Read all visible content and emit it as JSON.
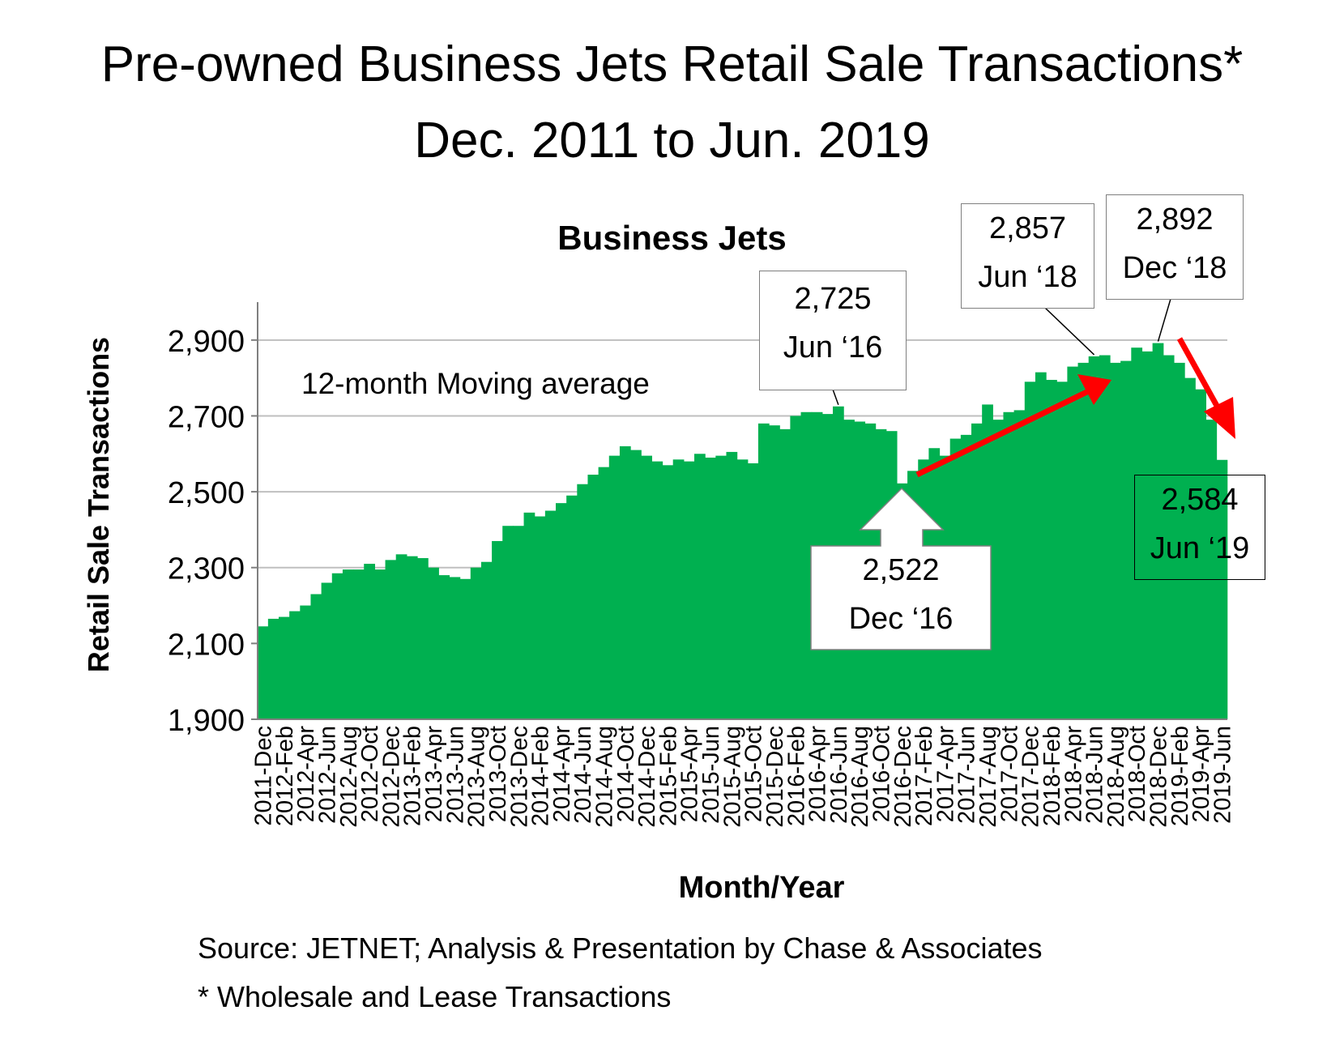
{
  "title_line1": "Pre-owned Business Jets Retail Sale Transactions*",
  "title_line2": "Dec. 2011 to Jun. 2019",
  "source": "Source: JETNET; Analysis & Presentation by Chase & Associates",
  "footnote": "* Wholesale and Lease Transactions",
  "moving_average_label": "12-month Moving average",
  "callouts": {
    "jun16": {
      "value": "2,725",
      "date": "Jun ‘16"
    },
    "dec16": {
      "value": "2,522",
      "date": "Dec ‘16"
    },
    "jun18": {
      "value": "2,857",
      "date": "Jun ‘18"
    },
    "dec18": {
      "value": "2,892",
      "date": "Dec ‘18"
    },
    "jun19": {
      "value": "2,584",
      "date": "Jun ‘19"
    }
  },
  "colors": {
    "fill": "#00B050",
    "gridline": "#bfbfbf",
    "arrow": "#FF0000",
    "box_border": "#7f7f7f"
  },
  "chart_data": {
    "type": "area",
    "title": "Business Jets",
    "xlabel": "Month/Year",
    "ylabel": "Retail Sale Transactions",
    "ylim": [
      1900,
      3000
    ],
    "yticks": [
      1900,
      2100,
      2300,
      2500,
      2700,
      2900
    ],
    "ytick_labels": [
      "1,900",
      "2,100",
      "2,300",
      "2,500",
      "2,700",
      "2,900"
    ],
    "grid": true,
    "categories": [
      "2011-Dec",
      "2012-Jan",
      "2012-Feb",
      "2012-Mar",
      "2012-Apr",
      "2012-May",
      "2012-Jun",
      "2012-Jul",
      "2012-Aug",
      "2012-Sep",
      "2012-Oct",
      "2012-Nov",
      "2012-Dec",
      "2013-Jan",
      "2013-Feb",
      "2013-Mar",
      "2013-Apr",
      "2013-May",
      "2013-Jun",
      "2013-Jul",
      "2013-Aug",
      "2013-Sep",
      "2013-Oct",
      "2013-Nov",
      "2013-Dec",
      "2014-Jan",
      "2014-Feb",
      "2014-Mar",
      "2014-Apr",
      "2014-May",
      "2014-Jun",
      "2014-Jul",
      "2014-Aug",
      "2014-Sep",
      "2014-Oct",
      "2014-Nov",
      "2014-Dec",
      "2015-Jan",
      "2015-Feb",
      "2015-Mar",
      "2015-Apr",
      "2015-May",
      "2015-Jun",
      "2015-Jul",
      "2015-Aug",
      "2015-Sep",
      "2015-Oct",
      "2015-Nov",
      "2015-Dec",
      "2016-Jan",
      "2016-Feb",
      "2016-Mar",
      "2016-Apr",
      "2016-May",
      "2016-Jun",
      "2016-Jul",
      "2016-Aug",
      "2016-Sep",
      "2016-Oct",
      "2016-Nov",
      "2016-Dec",
      "2017-Jan",
      "2017-Feb",
      "2017-Mar",
      "2017-Apr",
      "2017-May",
      "2017-Jun",
      "2017-Jul",
      "2017-Aug",
      "2017-Sep",
      "2017-Oct",
      "2017-Nov",
      "2017-Dec",
      "2018-Jan",
      "2018-Feb",
      "2018-Mar",
      "2018-Apr",
      "2018-May",
      "2018-Jun",
      "2018-Jul",
      "2018-Aug",
      "2018-Sep",
      "2018-Oct",
      "2018-Nov",
      "2018-Dec",
      "2019-Jan",
      "2019-Feb",
      "2019-Mar",
      "2019-Apr",
      "2019-May",
      "2019-Jun"
    ],
    "tick_labels": [
      "2011-Dec",
      "2012-Feb",
      "2012-Apr",
      "2012-Jun",
      "2012-Aug",
      "2012-Oct",
      "2012-Dec",
      "2013-Feb",
      "2013-Apr",
      "2013-Jun",
      "2013-Aug",
      "2013-Oct",
      "2013-Dec",
      "2014-Feb",
      "2014-Apr",
      "2014-Jun",
      "2014-Aug",
      "2014-Oct",
      "2014-Dec",
      "2015-Feb",
      "2015-Apr",
      "2015-Jun",
      "2015-Aug",
      "2015-Oct",
      "2015-Dec",
      "2016-Feb",
      "2016-Apr",
      "2016-Jun",
      "2016-Aug",
      "2016-Oct",
      "2016-Dec",
      "2017-Feb",
      "2017-Apr",
      "2017-Jun",
      "2017-Aug",
      "2017-Oct",
      "2017-Dec",
      "2018-Feb",
      "2018-Apr",
      "2018-Jun",
      "2018-Aug",
      "2018-Oct",
      "2018-Dec",
      "2019-Feb",
      "2019-Apr",
      "2019-Jun"
    ],
    "values": [
      2145,
      2165,
      2170,
      2185,
      2200,
      2230,
      2260,
      2285,
      2295,
      2295,
      2310,
      2295,
      2320,
      2335,
      2330,
      2325,
      2300,
      2280,
      2275,
      2270,
      2300,
      2315,
      2370,
      2410,
      2410,
      2445,
      2435,
      2450,
      2470,
      2490,
      2520,
      2545,
      2565,
      2595,
      2620,
      2610,
      2595,
      2580,
      2570,
      2585,
      2580,
      2600,
      2590,
      2595,
      2605,
      2585,
      2575,
      2680,
      2675,
      2665,
      2700,
      2710,
      2710,
      2705,
      2725,
      2690,
      2685,
      2680,
      2665,
      2660,
      2522,
      2555,
      2585,
      2615,
      2595,
      2640,
      2650,
      2680,
      2730,
      2690,
      2710,
      2715,
      2790,
      2815,
      2795,
      2790,
      2830,
      2840,
      2857,
      2860,
      2840,
      2845,
      2880,
      2870,
      2892,
      2860,
      2840,
      2800,
      2770,
      2690,
      2584
    ]
  }
}
